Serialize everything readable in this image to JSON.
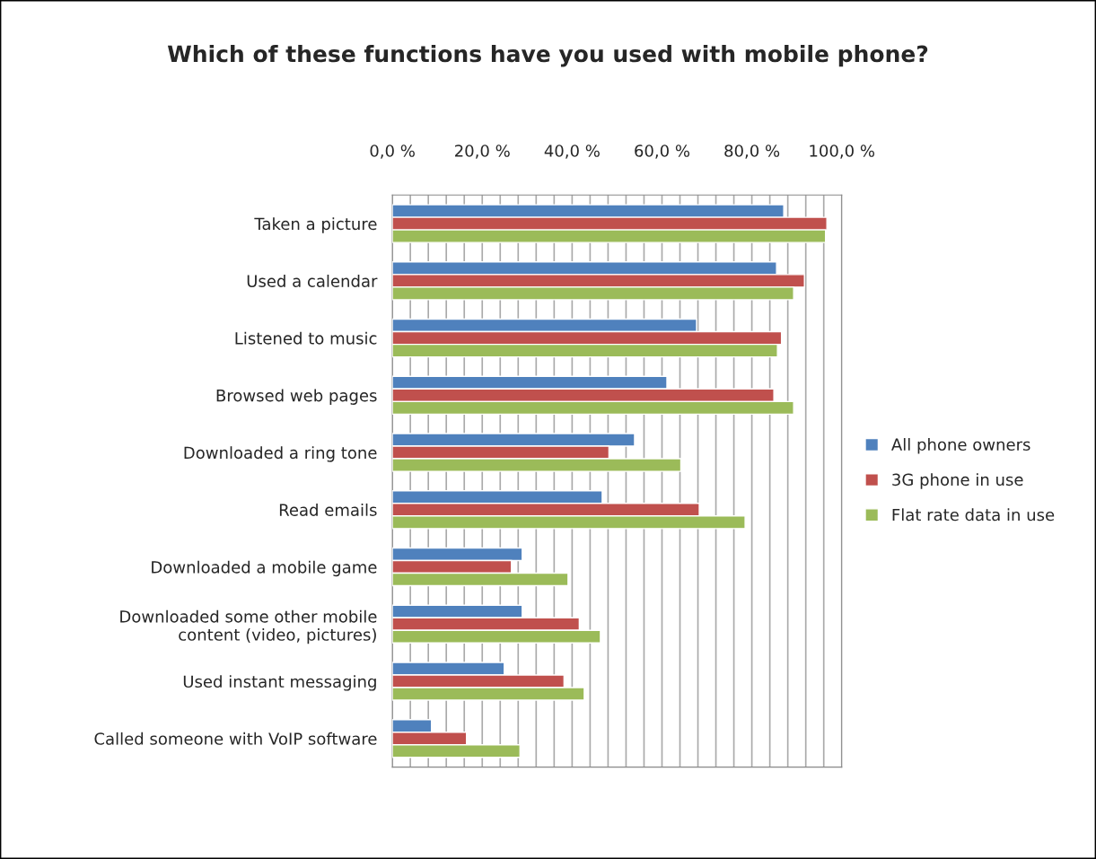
{
  "chart_data": {
    "type": "bar",
    "orientation": "horizontal",
    "title": "Which of these functions have you used with mobile phone?",
    "categories": [
      "Taken a picture",
      "Used a calendar",
      "Listened to music",
      "Browsed web pages",
      "Downloaded a ring tone",
      "Read emails",
      "Downloaded a mobile game",
      "Downloaded some other mobile\ncontent (video, pictures)",
      "Used instant messaging",
      "Called someone with VoIP software"
    ],
    "series": [
      {
        "name": "All phone owners",
        "color": "#4f81bd",
        "values": [
          87.1,
          85.5,
          67.7,
          61.1,
          53.9,
          46.7,
          28.9,
          28.9,
          24.9,
          8.7
        ]
      },
      {
        "name": "3G phone in use",
        "color": "#c0504d",
        "values": [
          96.7,
          91.7,
          86.6,
          84.9,
          48.2,
          68.3,
          26.5,
          41.6,
          38.2,
          16.5
        ]
      },
      {
        "name": "Flat rate data in use",
        "color": "#9bbb59",
        "values": [
          96.4,
          89.3,
          85.7,
          89.3,
          64.2,
          78.5,
          39.1,
          46.3,
          42.7,
          28.4
        ]
      }
    ],
    "xlim": [
      0,
      100
    ],
    "xticks": [
      {
        "value": 0,
        "label": "0,0 %"
      },
      {
        "value": 4,
        "label": null
      },
      {
        "value": 8,
        "label": null
      },
      {
        "value": 12,
        "label": null
      },
      {
        "value": 16,
        "label": null
      },
      {
        "value": 20,
        "label": "20,0 %"
      },
      {
        "value": 24,
        "label": null
      },
      {
        "value": 28,
        "label": null
      },
      {
        "value": 32,
        "label": null
      },
      {
        "value": 36,
        "label": null
      },
      {
        "value": 40,
        "label": "40,0 %"
      },
      {
        "value": 44,
        "label": null
      },
      {
        "value": 48,
        "label": null
      },
      {
        "value": 52,
        "label": null
      },
      {
        "value": 56,
        "label": null
      },
      {
        "value": 60,
        "label": "60,0 %"
      },
      {
        "value": 64,
        "label": null
      },
      {
        "value": 68,
        "label": null
      },
      {
        "value": 72,
        "label": null
      },
      {
        "value": 76,
        "label": null
      },
      {
        "value": 80,
        "label": "80,0 %"
      },
      {
        "value": 84,
        "label": null
      },
      {
        "value": 88,
        "label": null
      },
      {
        "value": 92,
        "label": null
      },
      {
        "value": 96,
        "label": null
      },
      {
        "value": 100,
        "label": "100,0 %"
      }
    ],
    "grid": "x",
    "legend": "right"
  }
}
